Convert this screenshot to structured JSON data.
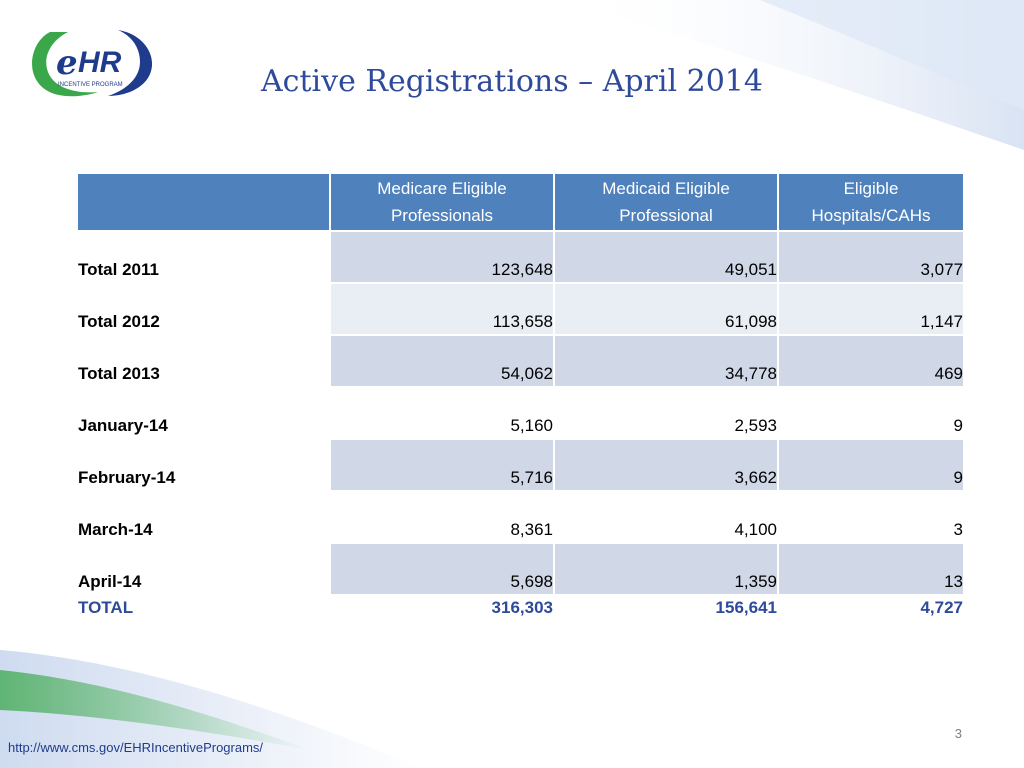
{
  "logo": {
    "mark": "eHR",
    "caption": "INCENTIVE PROGRAM"
  },
  "title": "Active Registrations – April 2014",
  "table": {
    "headers": [
      "",
      "Medicare Eligible Professionals",
      "Medicaid Eligible Professional",
      "Eligible Hospitals/CAHs"
    ],
    "rows": [
      {
        "label": "Total 2011",
        "medicare": "123,648",
        "medicaid": "49,051",
        "hospitals": "3,077"
      },
      {
        "label": "Total 2012",
        "medicare": "113,658",
        "medicaid": "61,098",
        "hospitals": "1,147"
      },
      {
        "label": "Total 2013",
        "medicare": "54,062",
        "medicaid": "34,778",
        "hospitals": "469"
      },
      {
        "label": "January-14",
        "medicare": "5,160",
        "medicaid": "2,593",
        "hospitals": "9"
      },
      {
        "label": "February-14",
        "medicare": "5,716",
        "medicaid": "3,662",
        "hospitals": "9"
      },
      {
        "label": "March-14",
        "medicare": "8,361",
        "medicaid": "4,100",
        "hospitals": "3"
      },
      {
        "label": "April-14",
        "medicare": "5,698",
        "medicaid": "1,359",
        "hospitals": "13"
      }
    ],
    "total": {
      "label": "TOTAL",
      "medicare": "316,303",
      "medicaid": "156,641",
      "hospitals": "4,727"
    }
  },
  "page_number": "3",
  "footer_url": "http://www.cms.gov/EHRIncentivePrograms/",
  "colors": {
    "header_blue": "#4f81bd",
    "title_blue": "#2e4a9a",
    "row_shade": "#d0d8e8",
    "row_light": "#e9edf4",
    "logo_green": "#3aa84a"
  }
}
